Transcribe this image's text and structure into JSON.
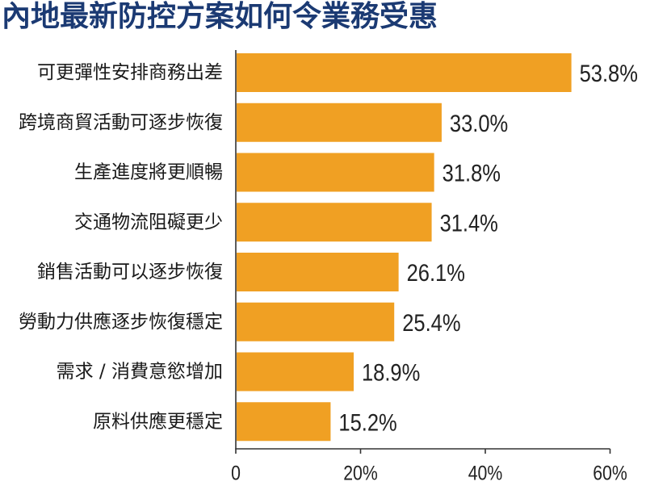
{
  "chart_data": {
    "type": "bar",
    "orientation": "horizontal",
    "title": "內地最新防控方案如何令業務受惠",
    "categories": [
      "可更彈性安排商務出差",
      "跨境商貿活動可逐步恢復",
      "生產進度將更順暢",
      "交通物流阻礙更少",
      "銷售活動可以逐步恢復",
      "勞動力供應逐步恢復穩定",
      "需求 / 消費意慾增加",
      "原料供應更穩定"
    ],
    "values": [
      53.8,
      33.0,
      31.8,
      31.4,
      26.1,
      25.4,
      18.9,
      15.2
    ],
    "value_labels": [
      "53.8%",
      "33.0%",
      "31.8%",
      "31.4%",
      "26.1%",
      "25.4%",
      "18.9%",
      "15.2%"
    ],
    "xlim": [
      0,
      60
    ],
    "xticks": [
      0,
      20,
      40,
      60
    ],
    "xtick_labels": [
      "0",
      "20%",
      "40%",
      "60%"
    ],
    "xlabel": "",
    "ylabel": "",
    "grid": false,
    "legend": "none",
    "bar_color": "#F0A023"
  },
  "colors": {
    "title": "#1B3A73",
    "text": "#1A1A1A",
    "axis": "#333333"
  }
}
